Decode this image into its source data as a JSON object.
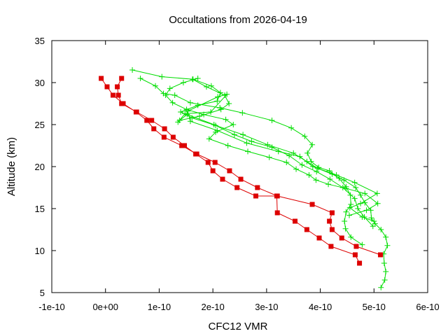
{
  "chart_data": {
    "type": "line",
    "title": "Occultations from 2026-04-19",
    "xlabel": "CFC12 VMR",
    "ylabel": "Altitude (km)",
    "xlim": [
      -1e-10,
      6e-10
    ],
    "ylim": [
      5,
      35
    ],
    "x_ticks": [
      -1e-10,
      0,
      1e-10,
      2e-10,
      3e-10,
      4e-10,
      5e-10,
      6e-10
    ],
    "x_tick_labels": [
      "-1e-10",
      "0e+00",
      "1e-10",
      "2e-10",
      "3e-10",
      "4e-10",
      "5e-10",
      "6e-10"
    ],
    "y_ticks": [
      5,
      10,
      15,
      20,
      25,
      30,
      35
    ],
    "y_tick_labels": [
      "5",
      "10",
      "15",
      "20",
      "25",
      "30",
      "35"
    ],
    "grid": false,
    "series": [
      {
        "color": "#dd0000",
        "marker": "square",
        "points": [
          [
            -8e-12,
            30.5
          ],
          [
            3e-12,
            29.5
          ],
          [
            1.4e-11,
            28.5
          ],
          [
            3.3e-11,
            27.5
          ],
          [
            5.7e-11,
            26.5
          ],
          [
            7.7e-11,
            25.5
          ],
          [
            9e-11,
            24.5
          ],
          [
            1.09e-10,
            23.5
          ],
          [
            1.42e-10,
            22.5
          ],
          [
            1.7e-10,
            21.5
          ],
          [
            2.04e-10,
            20.5
          ],
          [
            2.31e-10,
            19.5
          ],
          [
            2.52e-10,
            18.5
          ],
          [
            2.83e-10,
            17.5
          ],
          [
            3.2e-10,
            16.5
          ],
          [
            3.85e-10,
            15.5
          ],
          [
            4.22e-10,
            14.5
          ],
          [
            4.17e-10,
            13.5
          ],
          [
            4.22e-10,
            12.5
          ],
          [
            4.4e-10,
            11.5
          ],
          [
            4.67e-10,
            10.5
          ],
          [
            5.12e-10,
            9.5
          ]
        ]
      },
      {
        "color": "#dd0000",
        "marker": "square",
        "points": [
          [
            3e-11,
            30.5
          ],
          [
            2.2e-11,
            29.5
          ],
          [
            2.4e-11,
            28.5
          ],
          [
            3e-11,
            27.5
          ],
          [
            5.8e-11,
            26.5
          ],
          [
            8.6e-11,
            25.5
          ],
          [
            1.1e-10,
            24.5
          ],
          [
            1.26e-10,
            23.5
          ],
          [
            1.47e-10,
            22.5
          ],
          [
            1.68e-10,
            21.5
          ],
          [
            1.91e-10,
            20.5
          ],
          [
            2e-10,
            19.5
          ],
          [
            2.18e-10,
            18.5
          ],
          [
            2.45e-10,
            17.5
          ],
          [
            2.8e-10,
            16.5
          ],
          [
            3.19e-10,
            16.5
          ],
          [
            3.2e-10,
            14.5
          ],
          [
            3.53e-10,
            13.5
          ],
          [
            3.75e-10,
            12.5
          ],
          [
            3.98e-10,
            11.5
          ],
          [
            4.2e-10,
            10.5
          ],
          [
            4.65e-10,
            9.5
          ],
          [
            4.73e-10,
            8.5
          ]
        ]
      },
      {
        "color": "#00dd00",
        "marker": "plus",
        "points": [
          [
            5e-11,
            31.5
          ],
          [
            1.05e-10,
            30.7
          ],
          [
            1.63e-10,
            30.4
          ],
          [
            1.97e-10,
            29.6
          ],
          [
            2.14e-10,
            28.8
          ],
          [
            2.08e-10,
            27.8
          ],
          [
            1.72e-10,
            27.3
          ],
          [
            1.4e-10,
            26.5
          ],
          [
            1.61e-10,
            25.8
          ],
          [
            2.05e-10,
            24.9
          ],
          [
            2.56e-10,
            23.8
          ],
          [
            3.02e-10,
            22.6
          ],
          [
            3.5e-10,
            21.6
          ],
          [
            3.75e-10,
            20.6
          ],
          [
            3.95e-10,
            19.8
          ],
          [
            4.22e-10,
            19.1
          ],
          [
            4.44e-10,
            18.4
          ],
          [
            4.66e-10,
            17.5
          ],
          [
            4.75e-10,
            16.6
          ],
          [
            4.83e-10,
            15.7
          ],
          [
            4.94e-10,
            14.8
          ],
          [
            4.95e-10,
            13.9
          ],
          [
            5.02e-10,
            13.2
          ],
          [
            5.13e-10,
            12.5
          ],
          [
            5.22e-10,
            11.6
          ],
          [
            5.25e-10,
            10.6
          ],
          [
            5.18e-10,
            9.6
          ],
          [
            5.19e-10,
            8.5
          ],
          [
            5.22e-10,
            7.5
          ],
          [
            5.2e-10,
            6.5
          ],
          [
            5.13e-10,
            5.6
          ]
        ]
      },
      {
        "color": "#00dd00",
        "marker": "plus",
        "points": [
          [
            6.5e-11,
            30.5
          ],
          [
            9.3e-11,
            29.6
          ],
          [
            1.08e-10,
            28.7
          ],
          [
            1.29e-10,
            28.5
          ],
          [
            1.58e-10,
            27.6
          ],
          [
            2.13e-10,
            27.0
          ],
          [
            2.55e-10,
            26.4
          ],
          [
            3.1e-10,
            25.5
          ],
          [
            3.46e-10,
            24.6
          ],
          [
            3.71e-10,
            23.6
          ],
          [
            3.85e-10,
            22.6
          ],
          [
            3.76e-10,
            21.6
          ],
          [
            3.83e-10,
            20.6
          ],
          [
            3.97e-10,
            19.9
          ],
          [
            4.17e-10,
            19.5
          ],
          [
            4.35e-10,
            18.6
          ],
          [
            4.48e-10,
            17.6
          ],
          [
            4.56e-10,
            16.6
          ],
          [
            4.57e-10,
            15.5
          ],
          [
            4.48e-10,
            14.6
          ],
          [
            4.45e-10,
            13.5
          ],
          [
            4.47e-10,
            12.6
          ],
          [
            4.57e-10,
            11.6
          ],
          [
            4.78e-10,
            10.7
          ]
        ]
      },
      {
        "color": "#00dd00",
        "marker": "plus",
        "points": [
          [
            1.72e-10,
            30.5
          ],
          [
            1.45e-10,
            30.0
          ],
          [
            1.2e-10,
            29.3
          ],
          [
            1.12e-10,
            28.5
          ],
          [
            1.25e-10,
            27.6
          ],
          [
            1.51e-10,
            26.8
          ],
          [
            1.83e-10,
            26.2
          ],
          [
            2.24e-10,
            25.6
          ],
          [
            2.38e-10,
            25.0
          ],
          [
            2.05e-10,
            24.1
          ],
          [
            1.93e-10,
            23.3
          ],
          [
            2.28e-10,
            22.5
          ],
          [
            2.65e-10,
            21.8
          ],
          [
            3.05e-10,
            21.1
          ],
          [
            3.37e-10,
            20.5
          ],
          [
            3.55e-10,
            19.7
          ],
          [
            3.79e-10,
            19.0
          ],
          [
            3.92e-10,
            18.4
          ],
          [
            4.15e-10,
            17.9
          ],
          [
            4.48e-10,
            17.4
          ],
          [
            4.83e-10,
            16.8
          ],
          [
            5.07e-10,
            15.6
          ],
          [
            4.86e-10,
            14.8
          ],
          [
            4.54e-10,
            14.2
          ]
        ]
      },
      {
        "color": "#00dd00",
        "marker": "plus",
        "points": [
          [
            1.62e-10,
            30.4
          ],
          [
            1.88e-10,
            29.5
          ],
          [
            2.22e-10,
            28.5
          ],
          [
            2.3e-10,
            27.5
          ],
          [
            2.15e-10,
            26.8
          ],
          [
            1.75e-10,
            26.0
          ],
          [
            1.38e-10,
            25.5
          ],
          [
            1.52e-10,
            26.2
          ],
          [
            2.02e-10,
            25.0
          ],
          [
            2.4e-10,
            23.8
          ],
          [
            2.72e-10,
            23.0
          ],
          [
            3.1e-10,
            22.3
          ],
          [
            3.42e-10,
            21.3
          ],
          [
            3.66e-10,
            20.2
          ],
          [
            3.93e-10,
            19.4
          ],
          [
            4.18e-10,
            18.5
          ],
          [
            4.42e-10,
            17.5
          ],
          [
            4.64e-10,
            16.2
          ],
          [
            4.7e-10,
            15.0
          ],
          [
            4.82e-10,
            14.0
          ],
          [
            4.98e-10,
            12.9
          ]
        ]
      },
      {
        "color": "#00dd00",
        "marker": "plus",
        "points": [
          [
            1.35e-10,
            25.3
          ],
          [
            1.48e-10,
            26.3
          ],
          [
            1.96e-10,
            26.5
          ],
          [
            2.26e-10,
            28.6
          ],
          [
            2.09e-10,
            28.3
          ],
          [
            1.53e-10,
            26.6
          ],
          [
            1.58e-10,
            25.4
          ],
          [
            2.08e-10,
            24.3
          ],
          [
            2.63e-10,
            22.8
          ],
          [
            3.22e-10,
            21.8
          ],
          [
            3.62e-10,
            21.2
          ],
          [
            3.86e-10,
            20.0
          ],
          [
            4.3e-10,
            19.0
          ],
          [
            4.64e-10,
            18.1
          ],
          [
            5.06e-10,
            16.8
          ],
          [
            4.75e-10,
            15.6
          ],
          [
            4.55e-10,
            15.1
          ],
          [
            4.78e-10,
            14.0
          ],
          [
            5e-10,
            13.5
          ]
        ]
      }
    ]
  }
}
